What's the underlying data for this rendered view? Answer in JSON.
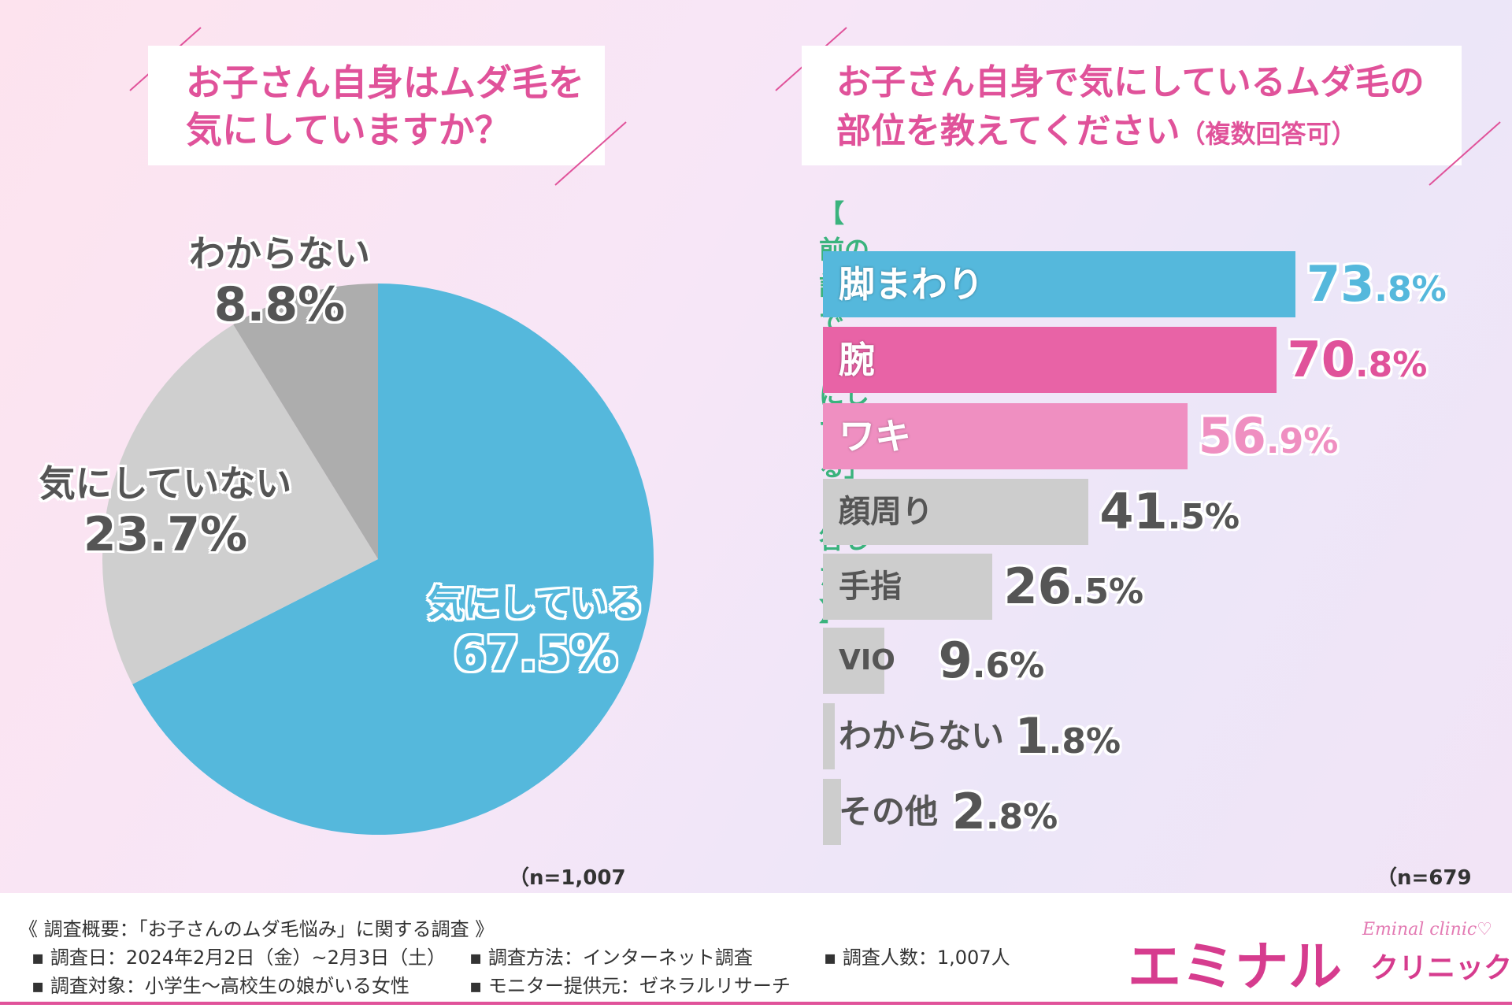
{
  "left": {
    "question_line1": "お子さん自身はムダ毛を",
    "question_line2": "気にしていますか？",
    "n_label": "（n=1,007人）"
  },
  "right": {
    "question_line1": "お子さん自身で気にしているムダ毛の",
    "question_line2": "部位を教えてください",
    "question_note": "（複数回答可）",
    "subtitle": "【 前の設問で「気にしている」と回答した方 】",
    "n_label": "（n=679人）"
  },
  "chart_data": [
    {
      "type": "pie",
      "slices": [
        {
          "label": "気にしている",
          "value": 67.5,
          "pct_text": "67.5%",
          "color": "#55b8dc"
        },
        {
          "label": "気にしていない",
          "value": 23.7,
          "pct_text": "23.7%",
          "color": "#cfcfcf"
        },
        {
          "label": "わからない",
          "value": 8.8,
          "pct_text": "8.8%",
          "color": "#adadad"
        }
      ]
    },
    {
      "type": "bar",
      "orientation": "horizontal",
      "categories": [
        "脚まわり",
        "腕",
        "ワキ",
        "顔周り",
        "手指",
        "VIO",
        "わからない",
        "その他"
      ],
      "values": [
        73.8,
        70.8,
        56.9,
        41.5,
        26.5,
        9.6,
        1.8,
        2.8
      ],
      "pct_text": [
        "73.8%",
        "70.8%",
        "56.9%",
        "41.5%",
        "26.5%",
        "9.6%",
        "1.8%",
        "2.8%"
      ],
      "colors": [
        "#55b8dc",
        "#e863a6",
        "#ef8fc1",
        "#cdcdcd",
        "#cdcdcd",
        "#cdcdcd",
        "#cdcdcd",
        "#cdcdcd"
      ]
    }
  ],
  "footer": {
    "summary": "《 調査概要：「お子さんのムダ毛悩み」に関する調査 》",
    "date": "▪ 調査日：2024年2月2日（金）~2月3日（土）",
    "method": "▪ 調査方法：インターネット調査",
    "count": "▪ 調査人数：1,007人",
    "target": "▪ 調査対象：小学生～高校生の娘がいる女性",
    "provider": "▪ モニター提供元：ゼネラルリサーチ"
  },
  "brand": {
    "main": "エミナル",
    "sub": "クリニック",
    "script": "Eminal clinic♡"
  },
  "colors": {
    "accent": "#e0529a",
    "blue": "#55b8dc",
    "green": "#3ab37d"
  }
}
